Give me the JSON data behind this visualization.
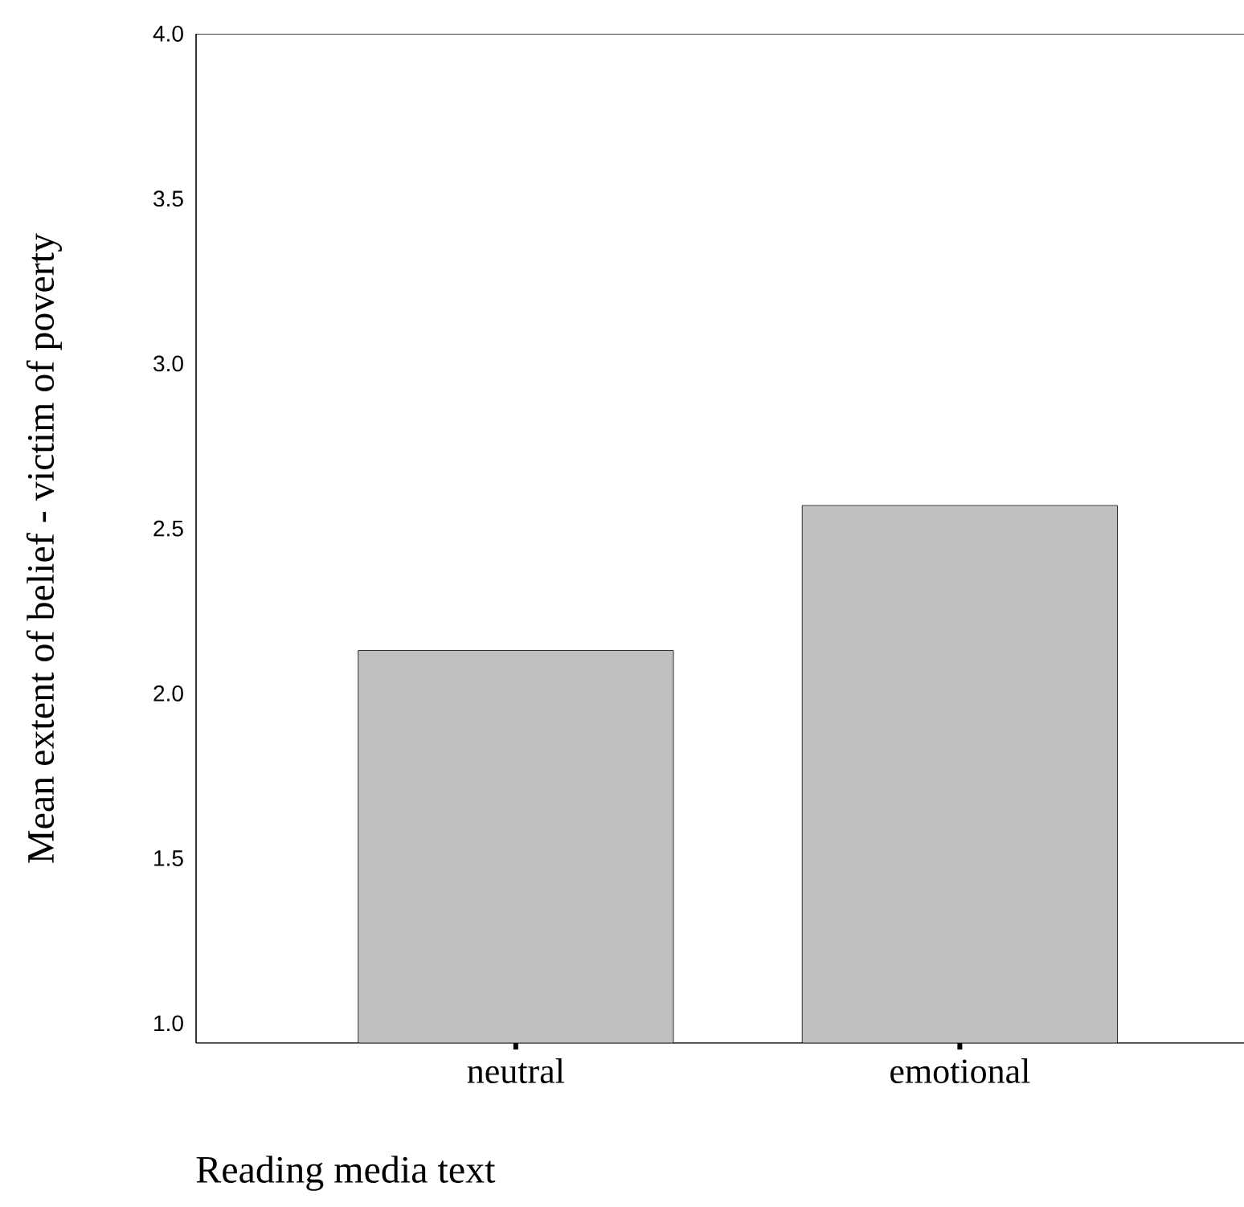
{
  "chart_data": {
    "type": "bar",
    "xlabel": "Reading media text",
    "ylabel": "Mean extent of belief - victim of poverty",
    "categories": [
      "neutral",
      "emotional"
    ],
    "values": [
      2.13,
      2.57
    ],
    "color": "#c0c0c0",
    "ylim": [
      0.94,
      4.0
    ],
    "yticks": [
      {
        "value": 1.0,
        "label": "1.0"
      },
      {
        "value": 1.5,
        "label": "1.5"
      },
      {
        "value": 2.0,
        "label": "2.0"
      },
      {
        "value": 2.5,
        "label": "2.5"
      },
      {
        "value": 3.0,
        "label": "3.0"
      },
      {
        "value": 3.5,
        "label": "3.5"
      },
      {
        "value": 4.0,
        "label": "4.0"
      }
    ],
    "marker": "none"
  }
}
